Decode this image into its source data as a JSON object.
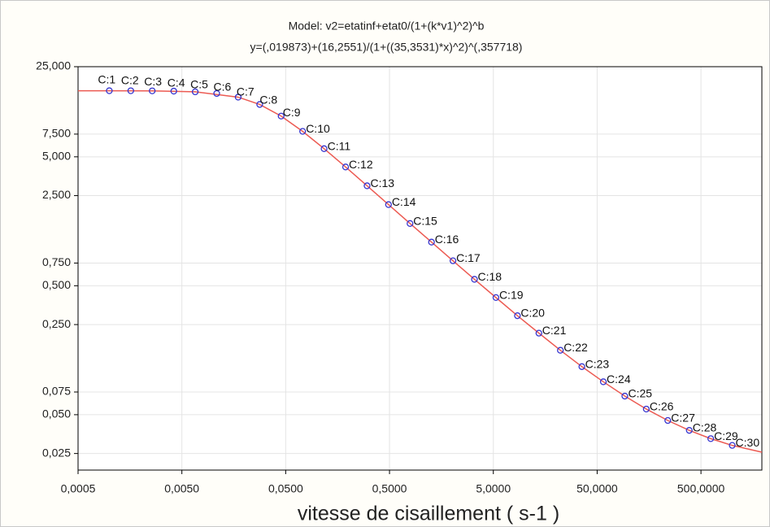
{
  "chart_data": {
    "type": "scatter",
    "title": "Model: v2=etatinf+etat0/(1+(k*v1)^2)^b",
    "subtitle": "y=(,019873)+(16,2551)/(1+((35,3531)*x)^2)^(,357718)",
    "x_label": "vitesse de cisaillement ( s-1 )",
    "xscale": "log",
    "yscale": "log",
    "grid": true,
    "xlim": [
      0.0005,
      1930
    ],
    "ylim": [
      0.0186,
      25
    ],
    "xticks": [
      {
        "value": 0.0005,
        "label": "0,0005"
      },
      {
        "value": 0.005,
        "label": "0,0050"
      },
      {
        "value": 0.05,
        "label": "0,0500"
      },
      {
        "value": 0.5,
        "label": "0,5000"
      },
      {
        "value": 5,
        "label": "5,0000"
      },
      {
        "value": 50,
        "label": "50,0000"
      },
      {
        "value": 500,
        "label": "500,0000"
      }
    ],
    "yticks": [
      {
        "value": 25,
        "label": "25,000"
      },
      {
        "value": 7.5,
        "label": "7,500"
      },
      {
        "value": 5,
        "label": "5,000"
      },
      {
        "value": 2.5,
        "label": "2,500"
      },
      {
        "value": 0.75,
        "label": "0,750"
      },
      {
        "value": 0.5,
        "label": "0,500"
      },
      {
        "value": 0.25,
        "label": "0,250"
      },
      {
        "value": 0.075,
        "label": "0,075"
      },
      {
        "value": 0.05,
        "label": "0,050"
      },
      {
        "value": 0.025,
        "label": "0,025"
      }
    ],
    "series": [
      {
        "color": "#3535d0",
        "x": [
          0.001,
          0.00161,
          0.00259,
          0.00418,
          0.00672,
          0.01083,
          0.01743,
          0.0281,
          0.0452,
          0.0728,
          0.1172,
          0.1888,
          0.304,
          0.489,
          0.788,
          1.269,
          2.043,
          3.29,
          5.298,
          8.532,
          13.74,
          22.12,
          35.62,
          57.36,
          92.37,
          148.7,
          239.5,
          385.7,
          621.1,
          1000
        ],
        "values": [
          16.27,
          16.26,
          16.23,
          16.15,
          15.96,
          15.5,
          14.51,
          12.74,
          10.35,
          7.88,
          5.78,
          4.17,
          2.98,
          2.13,
          1.52,
          1.09,
          0.781,
          0.561,
          0.405,
          0.293,
          0.2145,
          0.158,
          0.118,
          0.09,
          0.0697,
          0.0553,
          0.0451,
          0.0378,
          0.0326,
          0.0289
        ],
        "point_labels": [
          "C:1",
          "C:2",
          "C:3",
          "C:4",
          "C:5",
          "C:6",
          "C:7",
          "C:8",
          "C:9",
          "C:10",
          "C:11",
          "C:12",
          "C:13",
          "C:14",
          "C:15",
          "C:16",
          "C:17",
          "C:18",
          "C:19",
          "C:20",
          "C:21",
          "C:22",
          "C:23",
          "C:24",
          "C:25",
          "C:26",
          "C:27",
          "C:28",
          "C:29",
          "C:30"
        ]
      }
    ],
    "fit_curve": {
      "color": "#ec5a52",
      "x": [
        0.0005,
        0.001,
        0.00259,
        0.00672,
        0.01743,
        0.0281,
        0.0452,
        0.0728,
        0.1172,
        0.1888,
        0.304,
        0.489,
        0.788,
        1.269,
        2.043,
        3.29,
        5.298,
        8.532,
        13.74,
        22.12,
        35.62,
        57.36,
        92.37,
        148.7,
        239.5,
        385.7,
        621.1,
        1000,
        1930
      ],
      "values": [
        16.27,
        16.27,
        16.23,
        15.96,
        14.51,
        12.74,
        10.35,
        7.88,
        5.78,
        4.17,
        2.98,
        2.13,
        1.52,
        1.09,
        0.781,
        0.561,
        0.405,
        0.293,
        0.2145,
        0.158,
        0.118,
        0.09,
        0.0697,
        0.0553,
        0.0451,
        0.0378,
        0.0326,
        0.0289,
        0.0256
      ]
    }
  }
}
